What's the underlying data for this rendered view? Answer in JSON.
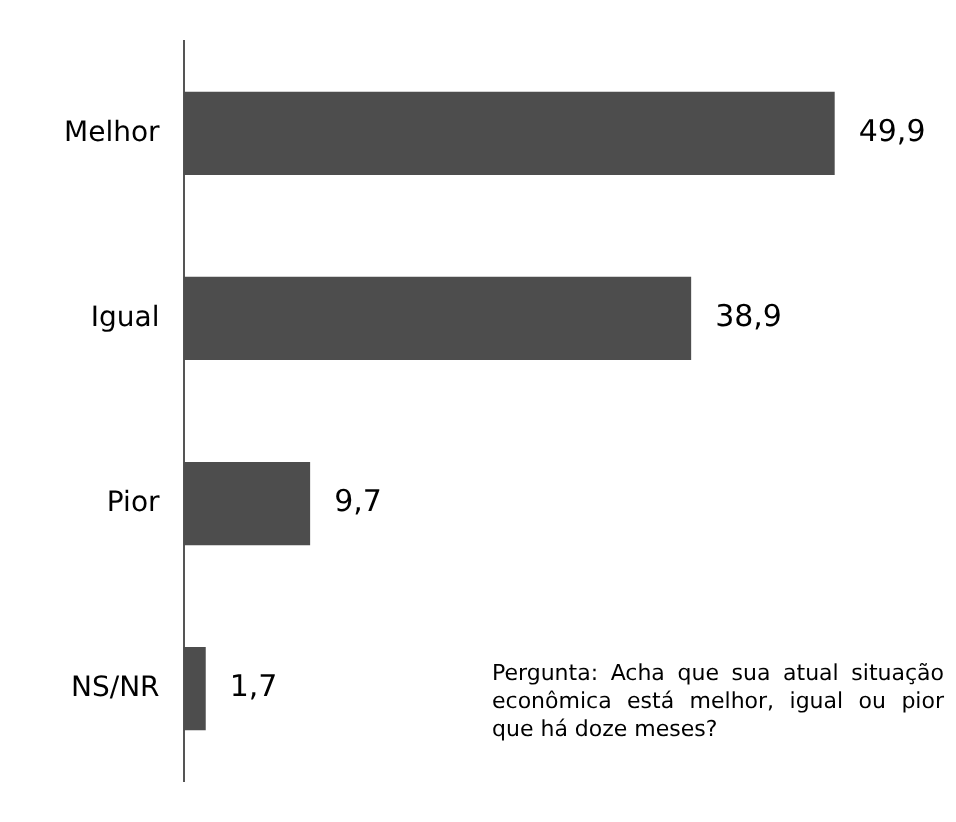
{
  "chart_data": {
    "type": "bar",
    "orientation": "horizontal",
    "categories": [
      "Melhor",
      "Igual",
      "Pior",
      "NS/NR"
    ],
    "values": [
      49.9,
      38.9,
      9.7,
      1.7
    ],
    "value_labels": [
      "49,9",
      "38,9",
      "9,7",
      "1,7"
    ],
    "color": "#4d4d4d",
    "legend": false,
    "annotations": [
      "Pergunta: Acha que sua atual situação econômica está melhor, igual ou pior que há doze meses?"
    ]
  }
}
